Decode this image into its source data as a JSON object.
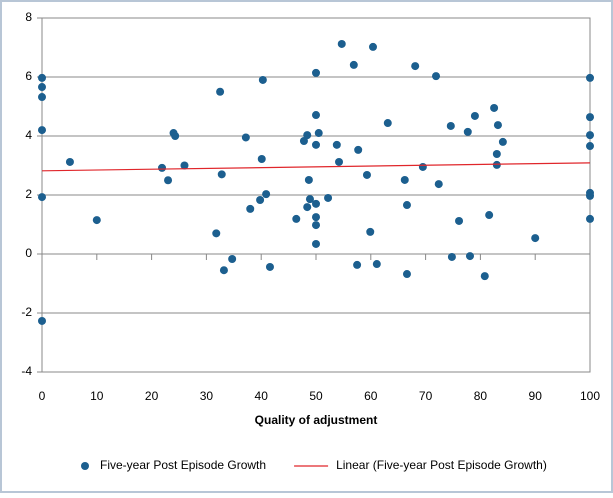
{
  "chart_data": {
    "type": "scatter",
    "xlabel": "Quality of adjustment",
    "xlim": [
      0,
      100
    ],
    "xticks": [
      0,
      10,
      20,
      30,
      40,
      50,
      60,
      70,
      80,
      90,
      100
    ],
    "ylim": [
      -4,
      8
    ],
    "yticks": [
      -4,
      -2,
      0,
      2,
      4,
      6,
      8
    ],
    "grid": true,
    "legend": "bottom",
    "series": [
      {
        "name": "Five-year Post Episode Growth",
        "color": "#1c5f8f",
        "x": [
          0,
          0,
          0,
          0,
          0,
          0,
          5.1,
          10,
          21.9,
          23,
          24,
          24.3,
          26,
          31.8,
          32.5,
          32.8,
          33.2,
          34.7,
          37.2,
          38,
          39.8,
          40.1,
          40.3,
          40.9,
          41.6,
          46.4,
          47.8,
          48.4,
          48.4,
          48.7,
          48.9,
          50,
          50,
          50,
          50,
          50,
          50,
          50,
          50.5,
          52.2,
          53.8,
          54.2,
          54.7,
          56.9,
          57.5,
          57.7,
          59.3,
          59.9,
          60.4,
          61.1,
          63.1,
          66.2,
          66.6,
          66.6,
          68.1,
          69.5,
          71.9,
          72.4,
          74.6,
          74.8,
          76.1,
          77.7,
          78.1,
          79,
          80.8,
          81.6,
          82.5,
          83,
          83,
          83.2,
          84.1,
          90,
          100,
          100,
          100,
          100,
          100,
          100,
          100
        ],
        "values": [
          5.97,
          5.66,
          5.32,
          4.2,
          1.93,
          -2.27,
          3.12,
          1.15,
          2.92,
          2.5,
          4.1,
          4.0,
          3.0,
          0.7,
          5.5,
          2.7,
          -0.55,
          -0.17,
          3.95,
          1.53,
          1.83,
          3.22,
          5.9,
          2.03,
          -0.44,
          1.19,
          3.83,
          4.03,
          1.59,
          2.51,
          1.86,
          6.14,
          4.71,
          3.7,
          1.7,
          1.25,
          0.98,
          0.34,
          4.1,
          1.9,
          3.7,
          3.12,
          7.12,
          6.41,
          -0.37,
          3.53,
          2.68,
          0.75,
          7.02,
          -0.34,
          4.44,
          2.51,
          1.66,
          -0.68,
          6.37,
          2.95,
          6.03,
          2.37,
          4.34,
          -0.1,
          1.12,
          4.14,
          -0.07,
          4.68,
          -0.75,
          1.32,
          4.95,
          3.02,
          3.39,
          4.37,
          3.8,
          0.54,
          5.97,
          4.64,
          4.03,
          3.66,
          2.07,
          1.97,
          1.19
        ]
      },
      {
        "name": "Linear (Five-year Post Episode Growth)",
        "color": "#e0262b",
        "line": true,
        "x": [
          0,
          100
        ],
        "values": [
          2.82,
          3.09
        ]
      }
    ]
  }
}
